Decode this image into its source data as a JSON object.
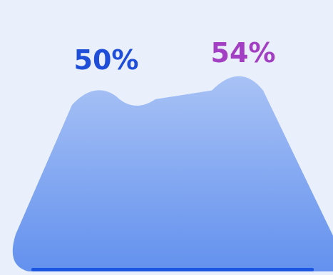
{
  "chart_data": {
    "type": "area",
    "categories": [
      "",
      ""
    ],
    "series": [
      {
        "values": [
          50,
          54
        ],
        "labels": [
          "50%",
          "54%"
        ],
        "label_colors": [
          "#1f4fd8",
          "#a23fc2"
        ]
      }
    ],
    "ylim": [
      0,
      60
    ],
    "grid": false,
    "legend": "none",
    "colors": {
      "area_top": "#a8c2f5",
      "area_bottom": "#6391ee",
      "baseline": "#1a56e0",
      "background": "#e9f0fc"
    }
  }
}
